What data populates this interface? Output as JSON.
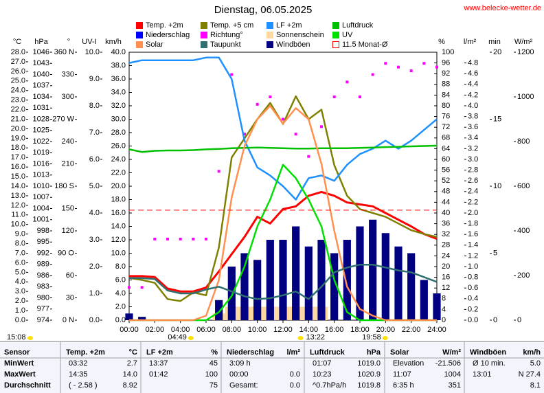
{
  "chart_data": {
    "type": "multi-axis",
    "title": "Dienstag, 06.05.2025",
    "source": "www.belecke-wetter.de",
    "x": [
      0,
      1,
      2,
      3,
      4,
      5,
      6,
      7,
      8,
      9,
      10,
      11,
      12,
      13,
      14,
      15,
      16,
      17,
      18,
      19,
      20,
      21,
      22,
      23,
      24
    ],
    "xlim": [
      0,
      24
    ],
    "xticks": [
      {
        "value": 0,
        "label": "00:00"
      },
      {
        "value": 2,
        "label": "02:00"
      },
      {
        "value": 4,
        "label": "04:00"
      },
      {
        "value": 6,
        "label": "06:00"
      },
      {
        "value": 8,
        "label": "08:00"
      },
      {
        "value": 10,
        "label": "10:00"
      },
      {
        "value": 12,
        "label": "12:00"
      },
      {
        "value": 14,
        "label": "14:00"
      },
      {
        "value": 16,
        "label": "16:00"
      },
      {
        "value": 18,
        "label": "18:00"
      },
      {
        "value": 20,
        "label": "20:00"
      },
      {
        "value": 22,
        "label": "22:00"
      },
      {
        "value": 24,
        "label": "24:00"
      }
    ],
    "y_axes": [
      {
        "label": "°C",
        "ylim": [
          0,
          28
        ],
        "yticks": [
          {
            "value": 0,
            "label": "0.0"
          },
          {
            "value": 1,
            "label": "1.0"
          },
          {
            "value": 2,
            "label": "2.0"
          },
          {
            "value": 3,
            "label": "3.0"
          },
          {
            "value": 4,
            "label": "4.0"
          },
          {
            "value": 5,
            "label": "5.0"
          },
          {
            "value": 6,
            "label": "6.0"
          },
          {
            "value": 7,
            "label": "7.0"
          },
          {
            "value": 8,
            "label": "8.0"
          },
          {
            "value": 9,
            "label": "9.0"
          },
          {
            "value": 10,
            "label": "10.0"
          },
          {
            "value": 11,
            "label": "11.0"
          },
          {
            "value": 12,
            "label": "12.0"
          },
          {
            "value": 13,
            "label": "13.0"
          },
          {
            "value": 14,
            "label": "14.0"
          },
          {
            "value": 15,
            "label": "15.0"
          },
          {
            "value": 16,
            "label": "16.0"
          },
          {
            "value": 17,
            "label": "17.0"
          },
          {
            "value": 18,
            "label": "18.0"
          },
          {
            "value": 19,
            "label": "19.0"
          },
          {
            "value": 20,
            "label": "20.0"
          },
          {
            "value": 21,
            "label": "21.0"
          },
          {
            "value": 22,
            "label": "22.0"
          },
          {
            "value": 23,
            "label": "23.0"
          },
          {
            "value": 24,
            "label": "24.0"
          },
          {
            "value": 25,
            "label": "25.0"
          },
          {
            "value": 26,
            "label": "26.0"
          },
          {
            "value": 27,
            "label": "27.0"
          },
          {
            "value": 28,
            "label": "28.0"
          }
        ]
      },
      {
        "label": "hPa",
        "ylim": [
          974,
          1046
        ],
        "yticks": [
          974,
          977,
          980,
          983,
          986,
          989,
          992,
          995,
          998,
          1001,
          1004,
          1007,
          1010,
          1013,
          1016,
          1019,
          1022,
          1025,
          1028,
          1031,
          1034,
          1037,
          1040,
          1043,
          1046
        ]
      },
      {
        "label": "°",
        "ylim": [
          0,
          360
        ],
        "yticks": [
          {
            "value": 0,
            "label": "0 N"
          },
          30,
          60,
          {
            "value": 90,
            "label": "90 O"
          },
          120,
          150,
          {
            "value": 180,
            "label": "180 S"
          },
          210,
          240,
          {
            "value": 270,
            "label": "270 W"
          },
          300,
          330,
          {
            "value": 360,
            "label": "360 N"
          }
        ]
      },
      {
        "label": "UV-I",
        "ylim": [
          0,
          10
        ],
        "yticks": [
          {
            "value": 0,
            "label": "0.0"
          },
          {
            "value": 1,
            "label": "1.0"
          },
          {
            "value": 2,
            "label": "2.0"
          },
          {
            "value": 3,
            "label": "3.0"
          },
          {
            "value": 4,
            "label": "4.0"
          },
          {
            "value": 5,
            "label": "5.0"
          },
          {
            "value": 6,
            "label": "6.0"
          },
          {
            "value": 7,
            "label": "7.0"
          },
          {
            "value": 8,
            "label": "8.0"
          },
          {
            "value": 9,
            "label": "9.0"
          },
          {
            "value": 10,
            "label": "10.0"
          }
        ]
      },
      {
        "label": "km/h",
        "ylim": [
          0,
          40
        ],
        "yticks": [
          {
            "value": 0,
            "label": "0.0"
          },
          {
            "value": 2,
            "label": "2.0"
          },
          {
            "value": 4,
            "label": "4.0"
          },
          {
            "value": 6,
            "label": "6.0"
          },
          {
            "value": 8,
            "label": "8.0"
          },
          {
            "value": 10,
            "label": "10.0"
          },
          {
            "value": 12,
            "label": "12.0"
          },
          {
            "value": 14,
            "label": "14.0"
          },
          {
            "value": 16,
            "label": "16.0"
          },
          {
            "value": 18,
            "label": "18.0"
          },
          {
            "value": 20,
            "label": "20.0"
          },
          {
            "value": 22,
            "label": "22.0"
          },
          {
            "value": 24,
            "label": "24.0"
          },
          {
            "value": 26,
            "label": "26.0"
          },
          {
            "value": 28,
            "label": "28.0"
          },
          {
            "value": 30,
            "label": "30.0"
          },
          {
            "value": 32,
            "label": "32.0"
          },
          {
            "value": 34,
            "label": "34.0"
          },
          {
            "value": 36,
            "label": "36.0"
          },
          {
            "value": 38,
            "label": "38.0"
          },
          {
            "value": 40,
            "label": "40.0"
          }
        ]
      },
      {
        "label": "%",
        "ylim": [
          0,
          100
        ],
        "yticks": [
          0,
          4,
          8,
          12,
          16,
          20,
          24,
          28,
          32,
          36,
          40,
          44,
          48,
          52,
          56,
          60,
          64,
          68,
          72,
          76,
          80,
          84,
          88,
          92,
          96,
          100
        ]
      },
      {
        "label": "l/m²",
        "ylim": [
          0,
          5
        ],
        "yticks": [
          {
            "value": 0,
            "label": "0.0"
          },
          0.2,
          0.4,
          0.6,
          0.8,
          {
            "value": 1,
            "label": "1.0"
          },
          1.2,
          1.4,
          1.6,
          1.8,
          {
            "value": 2,
            "label": "2.0"
          },
          2.2,
          2.4,
          2.6,
          2.8,
          {
            "value": 3,
            "label": "3.0"
          },
          3.2,
          3.4,
          3.6,
          3.8,
          {
            "value": 4,
            "label": "4.0"
          },
          4.2,
          4.4,
          4.6,
          4.8
        ]
      },
      {
        "label": "min",
        "ylim": [
          0,
          20
        ],
        "yticks": [
          0,
          5,
          10,
          15,
          20
        ]
      },
      {
        "label": "W/m²",
        "ylim": [
          0,
          1200
        ],
        "yticks": [
          0,
          200,
          400,
          600,
          800,
          1000,
          1200
        ]
      }
    ],
    "series": [
      {
        "name": "Temp. +2m",
        "color": "#ff0000",
        "axis": 0,
        "style": "line",
        "values": [
          4.6,
          4.6,
          4.5,
          3.3,
          3.0,
          3.0,
          3.4,
          5.1,
          6.9,
          8.7,
          10.8,
          10.1,
          11.6,
          11.9,
          13.0,
          13.4,
          13.0,
          12.3,
          12.1,
          11.9,
          11.2,
          10.5,
          9.8,
          9.0,
          8.5
        ]
      },
      {
        "name": "Temp. +5 cm",
        "color": "#808000",
        "axis": 0,
        "style": "line",
        "values": [
          4.4,
          4.2,
          3.9,
          2.2,
          2.0,
          2.9,
          2.6,
          7.6,
          17.0,
          19.0,
          21.0,
          22.7,
          20.5,
          23.4,
          21.0,
          22.0,
          16.2,
          13.0,
          11.6,
          11.2,
          10.8,
          10.1,
          9.4,
          9.0,
          8.7
        ]
      },
      {
        "name": "LF +2m",
        "color": "#1e90ff",
        "axis": 5,
        "style": "line",
        "values": [
          96,
          97,
          97,
          97,
          97,
          97,
          98,
          98,
          90,
          67,
          57,
          54,
          50,
          45,
          53,
          54,
          52,
          58,
          62,
          64,
          67,
          64,
          67,
          71,
          75
        ]
      },
      {
        "name": "Luftdruck",
        "color": "#00c000",
        "axis": 1,
        "style": "line",
        "values": [
          1019.9,
          1019.2,
          1019.5,
          1019.6,
          1019.6,
          1019.7,
          1019.9,
          1020.0,
          1020.2,
          1020.3,
          1020.4,
          1020.3,
          1020.2,
          1020.1,
          1020.1,
          1020.2,
          1020.2,
          1020.2,
          1020.3,
          1020.4,
          1020.5,
          1020.6,
          1020.7,
          1020.8,
          1020.9
        ]
      },
      {
        "name": "Niederschlag",
        "color": "#0000ff",
        "axis": 6,
        "style": "bars",
        "values": [
          0,
          0,
          0,
          0,
          0,
          0,
          0,
          0,
          0,
          0,
          0,
          0,
          0,
          0,
          0,
          0,
          0,
          0,
          0,
          0,
          0,
          0,
          0,
          0,
          0
        ]
      },
      {
        "name": "Richtung°",
        "color": "#ff00ff",
        "axis": 2,
        "style": "points",
        "values": [
          44,
          44,
          109,
          109,
          109,
          109,
          109,
          200,
          330,
          250,
          290,
          300,
          270,
          250,
          220,
          260,
          300,
          320,
          300,
          330,
          345,
          340,
          335,
          345,
          340
        ]
      },
      {
        "name": "Sonnenschein",
        "color": "#ffd8a0",
        "axis": 7,
        "style": "bars",
        "values": [
          0,
          0,
          0,
          0,
          0,
          0,
          0,
          0.5,
          1,
          1,
          1,
          1,
          1,
          1,
          1,
          1,
          0,
          0,
          0,
          0,
          0,
          0,
          0,
          0,
          0
        ]
      },
      {
        "name": "UV",
        "color": "#00e000",
        "axis": 3,
        "style": "line",
        "values": [
          0,
          0,
          0,
          0,
          0,
          0,
          0,
          0.3,
          0.9,
          2.0,
          3.5,
          4.5,
          5.8,
          5.3,
          4.5,
          3.5,
          1.5,
          0.3,
          0,
          0,
          0,
          0,
          0,
          0,
          0
        ]
      },
      {
        "name": "Solar",
        "color": "#ff9050",
        "axis": 8,
        "style": "line",
        "values": [
          0,
          0,
          0,
          0,
          0,
          0,
          20,
          180,
          550,
          780,
          900,
          960,
          880,
          950,
          900,
          700,
          400,
          150,
          50,
          20,
          0,
          0,
          0,
          0,
          0
        ]
      },
      {
        "name": "Taupunkt",
        "color": "#2f6f6f",
        "axis": 0,
        "style": "line",
        "values": [
          4.4,
          4.4,
          4.3,
          3.1,
          2.8,
          2.8,
          3.2,
          3.5,
          3.0,
          2.5,
          2.2,
          2.3,
          2.6,
          3.0,
          2.2,
          3.5,
          5.0,
          5.5,
          5.8,
          5.8,
          5.5,
          5.2,
          5.0,
          4.5,
          4.0
        ]
      },
      {
        "name": "Windböen",
        "color": "#000080",
        "axis": 4,
        "style": "bars",
        "values": [
          1,
          0.5,
          0,
          0,
          0,
          0,
          0,
          3,
          8,
          10,
          9,
          12,
          12,
          14,
          11,
          12,
          10,
          12,
          14,
          15,
          13,
          11,
          10,
          6,
          4
        ]
      }
    ],
    "reference": {
      "name": "11.5 Monat-Ø",
      "value": 11.5,
      "color": "#ff0000",
      "axis": 0
    },
    "day_length": "15:08",
    "sun_events": [
      {
        "value": 4.8167,
        "label": "04:49"
      },
      {
        "value": 13.3667,
        "label": "13:22"
      },
      {
        "value": 19.9667,
        "label": "19:58"
      }
    ],
    "table": {
      "header": [
        "Sensor",
        "Temp. +2m",
        "°C",
        "LF +2m",
        "%",
        "Niederschlag",
        "l/m²",
        "Luftdruck",
        "hPa",
        "Solar",
        "W/m²",
        "Windböen",
        "km/h"
      ],
      "rows": [
        [
          "MinWert",
          "03:32",
          "2.7",
          "13:37",
          "45",
          "3:09 h",
          null,
          "01:07",
          "1019.0",
          "Elevation",
          "-21.506",
          "Ø 10 min.",
          "5.0"
        ],
        [
          "MaxWert",
          "14:35",
          "14.0",
          "01:42",
          "100",
          "00:00",
          "0.0",
          "10:23",
          "1020.9",
          "11:07",
          "1004",
          "13:01",
          "N 27.4"
        ],
        [
          "Durchschnitt",
          "( - 2.58 )",
          "8.92",
          null,
          "75",
          "Gesamt:",
          "0.0",
          "^0.7hPa/h",
          "1019.8",
          "6:35 h",
          "351",
          null,
          "8.1"
        ]
      ]
    }
  }
}
